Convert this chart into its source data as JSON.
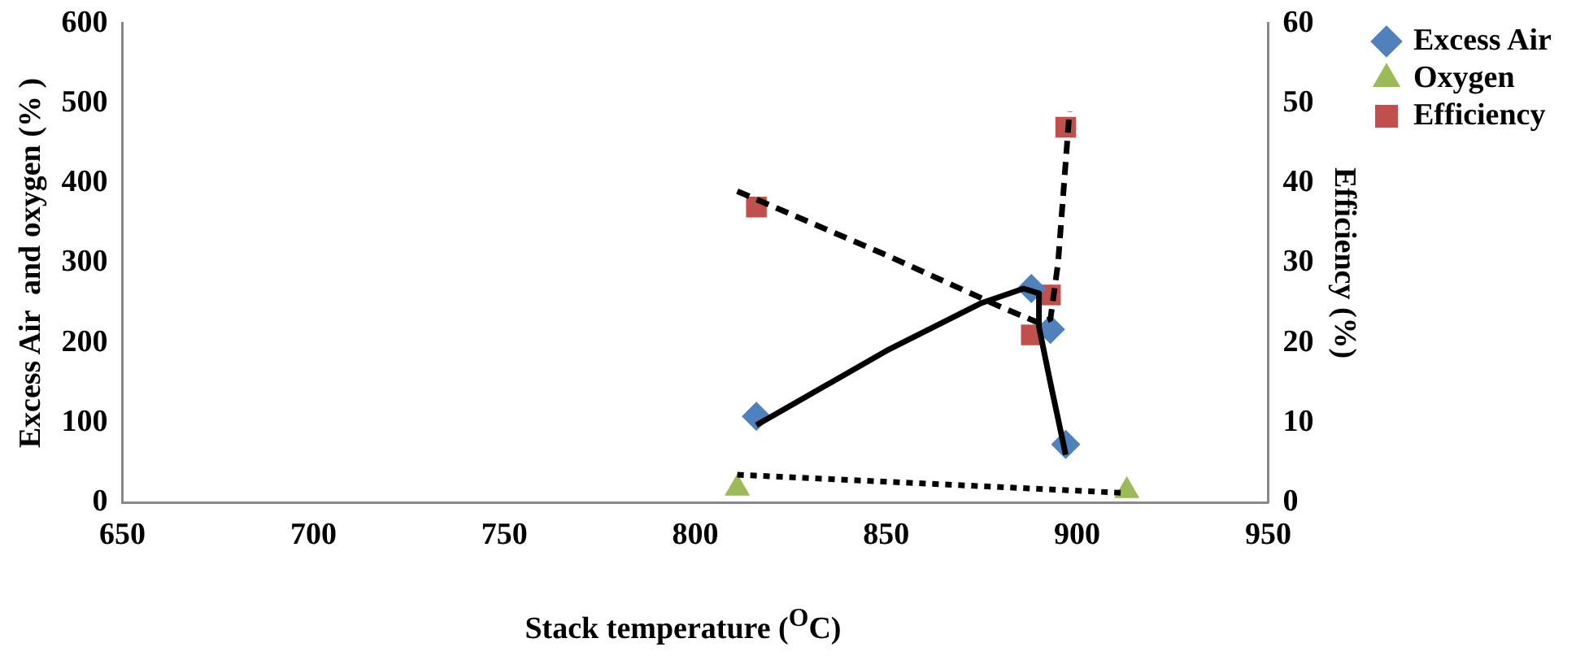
{
  "chart_data": {
    "type": "scatter",
    "xlabel": "Stack temperature ($^{O}$C)",
    "ylabel": "Excess Air  and oxygen (% )",
    "y2label": "Efficiency (%)",
    "xlim": [
      650,
      950
    ],
    "xticks": [
      650,
      700,
      750,
      800,
      850,
      900,
      950
    ],
    "ylim": [
      0,
      600
    ],
    "yticks": [
      0,
      100,
      200,
      300,
      400,
      500,
      600
    ],
    "y2lim": [
      0,
      60
    ],
    "y2ticks": [
      0,
      10,
      20,
      30,
      40,
      50,
      60
    ],
    "grid": false,
    "legend": "right",
    "series": [
      {
        "name": "Excess Air",
        "marker": "diamond",
        "color": "#4f81bd",
        "x": [
          816,
          888,
          893,
          897
        ],
        "values": [
          108,
          268,
          217,
          73
        ]
      },
      {
        "name": "Oxygen",
        "marker": "triangle",
        "color": "#9bbb59",
        "x": [
          811,
          913
        ],
        "values": [
          18,
          15
        ]
      },
      {
        "name": "Efficiency",
        "marker": "square",
        "color": "#c0504d",
        "axis": "y2",
        "x": [
          816,
          888,
          893,
          897
        ],
        "values": [
          37,
          21,
          26,
          47
        ]
      },
      {
        "type": "line",
        "line_style": "solid",
        "marker": "none",
        "color": "#000000",
        "x": [
          816,
          850,
          875,
          886,
          890,
          890,
          893,
          897
        ],
        "values": [
          97,
          190,
          250,
          268,
          262,
          220,
          150,
          60
        ]
      },
      {
        "type": "line",
        "line_style": "dotted",
        "marker": "none",
        "color": "#000000",
        "x": [
          811,
          913
        ],
        "values": [
          35,
          12
        ]
      },
      {
        "type": "line",
        "line_style": "dashed",
        "marker": "none",
        "color": "#000000",
        "axis": "y2",
        "x": [
          811,
          850,
          880,
          890,
          893,
          895,
          898
        ],
        "values": [
          39,
          31,
          24.5,
          22.5,
          23,
          30,
          49
        ]
      }
    ]
  }
}
